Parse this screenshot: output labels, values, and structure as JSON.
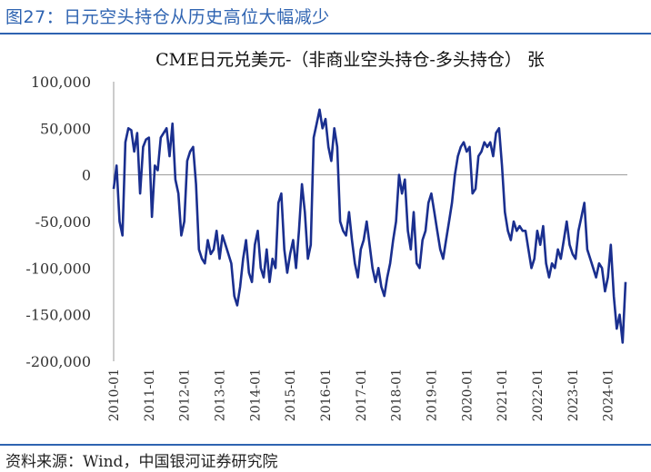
{
  "figure_title": "图27：日元空头持仓从历史高位大幅减少",
  "source_note": "资料来源：Wind，中国银河证券研究院",
  "colors": {
    "accent": "#2e63b1",
    "series": "#1a2f8f",
    "axis": "#999999"
  },
  "chart_data": {
    "type": "line",
    "title": "CME日元兑美元-（非商业空头持仓-多头持仓） 张",
    "xlabel": "",
    "ylabel": "",
    "ylim": [
      -200000,
      100000
    ],
    "yticks": [
      "100,000",
      "50,000",
      "0",
      "-50,000",
      "-100,000",
      "-150,000",
      "-200,000"
    ],
    "ytick_values": [
      100000,
      50000,
      0,
      -50000,
      -100000,
      -150000,
      -200000
    ],
    "xticks": [
      "2010-01",
      "2011-01",
      "2012-01",
      "2013-01",
      "2014-01",
      "2015-01",
      "2016-01",
      "2017-01",
      "2018-01",
      "2019-01",
      "2020-01",
      "2021-01",
      "2022-01",
      "2023-01",
      "2024-01"
    ],
    "grid": false,
    "series": [
      {
        "x": [
          "2010-01",
          "2010-02",
          "2010-03",
          "2010-04",
          "2010-05",
          "2010-06",
          "2010-07",
          "2010-08",
          "2010-09",
          "2010-10",
          "2010-11",
          "2010-12",
          "2011-01",
          "2011-02",
          "2011-03",
          "2011-04",
          "2011-05",
          "2011-06",
          "2011-07",
          "2011-08",
          "2011-09",
          "2011-10",
          "2011-11",
          "2011-12",
          "2012-01",
          "2012-02",
          "2012-03",
          "2012-04",
          "2012-05",
          "2012-06",
          "2012-07",
          "2012-08",
          "2012-09",
          "2012-10",
          "2012-11",
          "2012-12",
          "2013-01",
          "2013-02",
          "2013-03",
          "2013-04",
          "2013-05",
          "2013-06",
          "2013-07",
          "2013-08",
          "2013-09",
          "2013-10",
          "2013-11",
          "2013-12",
          "2014-01",
          "2014-02",
          "2014-03",
          "2014-04",
          "2014-05",
          "2014-06",
          "2014-07",
          "2014-08",
          "2014-09",
          "2014-10",
          "2014-11",
          "2014-12",
          "2015-01",
          "2015-02",
          "2015-03",
          "2015-04",
          "2015-05",
          "2015-06",
          "2015-07",
          "2015-08",
          "2015-09",
          "2015-10",
          "2015-11",
          "2015-12",
          "2016-01",
          "2016-02",
          "2016-03",
          "2016-04",
          "2016-05",
          "2016-06",
          "2016-07",
          "2016-08",
          "2016-09",
          "2016-10",
          "2016-11",
          "2016-12",
          "2017-01",
          "2017-02",
          "2017-03",
          "2017-04",
          "2017-05",
          "2017-06",
          "2017-07",
          "2017-08",
          "2017-09",
          "2017-10",
          "2017-11",
          "2017-12",
          "2018-01",
          "2018-02",
          "2018-03",
          "2018-04",
          "2018-05",
          "2018-06",
          "2018-07",
          "2018-08",
          "2018-09",
          "2018-10",
          "2018-11",
          "2018-12",
          "2019-01",
          "2019-02",
          "2019-03",
          "2019-04",
          "2019-05",
          "2019-06",
          "2019-07",
          "2019-08",
          "2019-09",
          "2019-10",
          "2019-11",
          "2019-12",
          "2020-01",
          "2020-02",
          "2020-03",
          "2020-04",
          "2020-05",
          "2020-06",
          "2020-07",
          "2020-08",
          "2020-09",
          "2020-10",
          "2020-11",
          "2020-12",
          "2021-01",
          "2021-02",
          "2021-03",
          "2021-04",
          "2021-05",
          "2021-06",
          "2021-07",
          "2021-08",
          "2021-09",
          "2021-10",
          "2021-11",
          "2021-12",
          "2022-01",
          "2022-02",
          "2022-03",
          "2022-04",
          "2022-05",
          "2022-06",
          "2022-07",
          "2022-08",
          "2022-09",
          "2022-10",
          "2022-11",
          "2022-12",
          "2023-01",
          "2023-02",
          "2023-03",
          "2023-04",
          "2023-05",
          "2023-06",
          "2023-07",
          "2023-08",
          "2023-09",
          "2023-10",
          "2023-11",
          "2023-12",
          "2024-01",
          "2024-02",
          "2024-03",
          "2024-04",
          "2024-05",
          "2024-06",
          "2024-07"
        ],
        "values": [
          -15000,
          10000,
          -50000,
          -65000,
          35000,
          50000,
          48000,
          25000,
          45000,
          -20000,
          30000,
          38000,
          40000,
          -45000,
          10000,
          5000,
          40000,
          45000,
          50000,
          20000,
          55000,
          -5000,
          -20000,
          -65000,
          -50000,
          15000,
          25000,
          30000,
          -10000,
          -80000,
          -90000,
          -95000,
          -70000,
          -85000,
          -80000,
          -60000,
          -90000,
          -65000,
          -75000,
          -85000,
          -95000,
          -130000,
          -140000,
          -120000,
          -90000,
          -70000,
          -105000,
          -115000,
          -75000,
          -60000,
          -100000,
          -110000,
          -80000,
          -115000,
          -90000,
          -100000,
          -30000,
          -20000,
          -80000,
          -105000,
          -85000,
          -70000,
          -100000,
          -60000,
          -10000,
          -40000,
          -90000,
          -75000,
          40000,
          55000,
          70000,
          50000,
          60000,
          30000,
          15000,
          50000,
          30000,
          -50000,
          -60000,
          -65000,
          -40000,
          -70000,
          -95000,
          -110000,
          -80000,
          -70000,
          -50000,
          -75000,
          -100000,
          -115000,
          -100000,
          -120000,
          -130000,
          -110000,
          -95000,
          -70000,
          -50000,
          0,
          -20000,
          -5000,
          -60000,
          -80000,
          -40000,
          -95000,
          -100000,
          -70000,
          -60000,
          -30000,
          -20000,
          -40000,
          -60000,
          -80000,
          -90000,
          -70000,
          -50000,
          -30000,
          0,
          20000,
          30000,
          35000,
          25000,
          30000,
          -20000,
          -15000,
          20000,
          25000,
          35000,
          30000,
          35000,
          20000,
          45000,
          50000,
          10000,
          -40000,
          -60000,
          -70000,
          -50000,
          -60000,
          -55000,
          -60000,
          -60000,
          -80000,
          -100000,
          -90000,
          -60000,
          -75000,
          -55000,
          -95000,
          -110000,
          -95000,
          -100000,
          -80000,
          -90000,
          -70000,
          -50000,
          -75000,
          -85000,
          -90000,
          -60000,
          -45000,
          -30000,
          -80000,
          -90000,
          -100000,
          -110000,
          -95000,
          -100000,
          -125000,
          -110000,
          -75000,
          -130000,
          -165000,
          -150000,
          -180000,
          -115000
        ]
      }
    ]
  }
}
